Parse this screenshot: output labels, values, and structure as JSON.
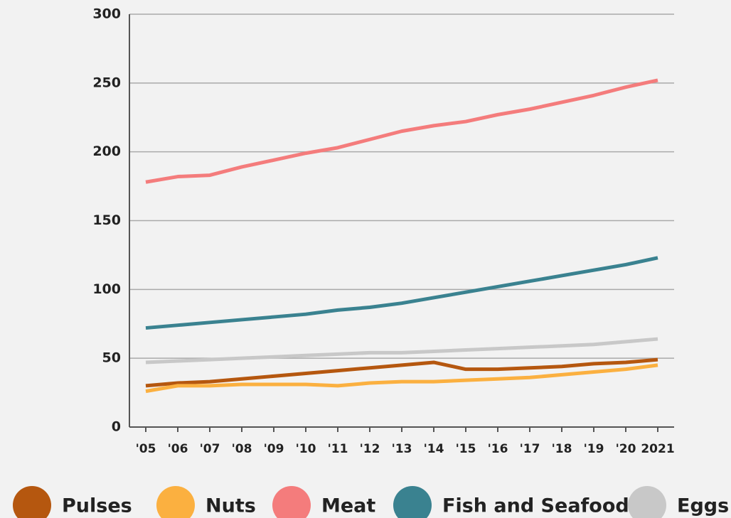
{
  "chart_data": {
    "type": "line",
    "categories": [
      "'05",
      "'06",
      "'07",
      "'08",
      "'09",
      "'10",
      "'11",
      "'12",
      "'13",
      "'14",
      "'15",
      "'16",
      "'17",
      "'18",
      "'19",
      "'20",
      "2021"
    ],
    "series": [
      {
        "name": "Pulses",
        "color": "#b5570f",
        "values": [
          30,
          32,
          33,
          35,
          37,
          39,
          41,
          43,
          45,
          47,
          42,
          42,
          43,
          44,
          46,
          47,
          49
        ]
      },
      {
        "name": "Nuts",
        "color": "#fbb040",
        "values": [
          26,
          30,
          30,
          31,
          31,
          31,
          30,
          32,
          33,
          33,
          34,
          35,
          36,
          38,
          40,
          42,
          45
        ]
      },
      {
        "name": "Meat",
        "color": "#f47c7c",
        "values": [
          178,
          182,
          183,
          189,
          194,
          199,
          203,
          209,
          215,
          219,
          222,
          227,
          231,
          236,
          241,
          247,
          252
        ]
      },
      {
        "name": "Fish and Seafood",
        "color": "#3a8290",
        "values": [
          72,
          74,
          76,
          78,
          80,
          82,
          85,
          87,
          90,
          94,
          98,
          102,
          106,
          110,
          114,
          118,
          123
        ]
      },
      {
        "name": "Eggs",
        "color": "#c8c8c8",
        "values": [
          47,
          48,
          49,
          50,
          51,
          52,
          53,
          54,
          54,
          55,
          56,
          57,
          58,
          59,
          60,
          62,
          64
        ]
      }
    ],
    "ylim": [
      0,
      300
    ],
    "yticks": [
      0,
      50,
      100,
      150,
      200,
      250,
      300
    ],
    "grid": true,
    "legend": "bottom"
  }
}
